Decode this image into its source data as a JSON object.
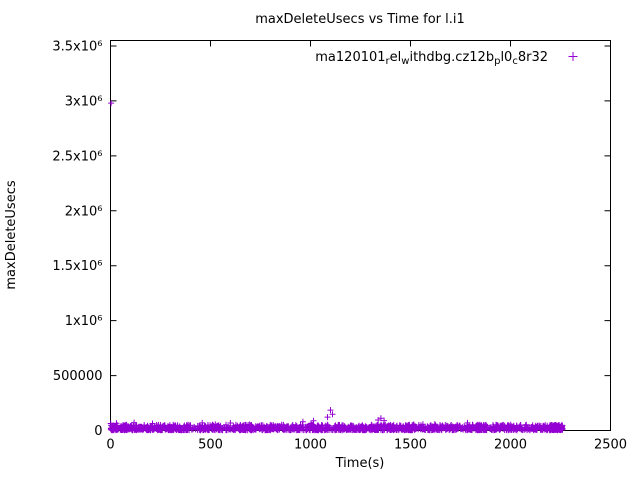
{
  "chart_data": {
    "type": "scatter",
    "title": "maxDeleteUsecs vs Time for l.i1",
    "xlabel": "Time(s)",
    "ylabel": "maxDeleteUsecs",
    "xlim": [
      0,
      2500
    ],
    "ylim": [
      0,
      3550000
    ],
    "grid": false,
    "background": "#ffffff",
    "axis_color": "#000000",
    "x_ticks": {
      "values": [
        0,
        500,
        1000,
        1500,
        2000,
        2500
      ],
      "labels": [
        "0",
        "500",
        "1000",
        "1500",
        "2000",
        "2500"
      ]
    },
    "y_ticks": {
      "values": [
        0,
        500000,
        1000000,
        1500000,
        2000000,
        2500000,
        3000000,
        3500000
      ],
      "labels": [
        "0",
        "500000",
        "1x10⁶",
        "1.5x10⁶",
        "2x10⁶",
        "2.5x10⁶",
        "3x10⁶",
        "3.5x10⁶"
      ]
    },
    "legend": {
      "position": "top-right-inside",
      "label": "ma120101_rel_withdbg.cz12b_pl0_c8r32",
      "marker": "plus",
      "label_parts": [
        {
          "t": "ma120101",
          "sub": false
        },
        {
          "t": "r",
          "sub": true
        },
        {
          "t": "el",
          "sub": false
        },
        {
          "t": "w",
          "sub": true
        },
        {
          "t": "ithdbg.cz12b",
          "sub": false
        },
        {
          "t": "p",
          "sub": true
        },
        {
          "t": "l0",
          "sub": false
        },
        {
          "t": "c",
          "sub": true
        },
        {
          "t": "8r32",
          "sub": false
        }
      ]
    },
    "series": [
      {
        "name": "ma120101_rel_withdbg.cz12b_pl0_c8r32",
        "marker": "plus",
        "color": "#9400D3",
        "outliers": [
          [
            3,
            2980000
          ],
          [
            1100,
            186000
          ],
          [
            1110,
            148000
          ],
          [
            1085,
            122000
          ],
          [
            1015,
            88000
          ],
          [
            962,
            80000
          ],
          [
            1352,
            112000
          ],
          [
            1338,
            96000
          ],
          [
            1368,
            90000
          ],
          [
            30,
            66000
          ],
          [
            118,
            72000
          ],
          [
            210,
            64000
          ]
        ],
        "band": {
          "x_min": 0,
          "x_max": 2255,
          "count": 1500,
          "y_min": 3000,
          "y_typ_max": 52000,
          "y_rare_max": 85000,
          "seed": 7
        },
        "end_cluster": {
          "x_min": 2195,
          "x_max": 2260,
          "count": 130
        }
      }
    ]
  }
}
